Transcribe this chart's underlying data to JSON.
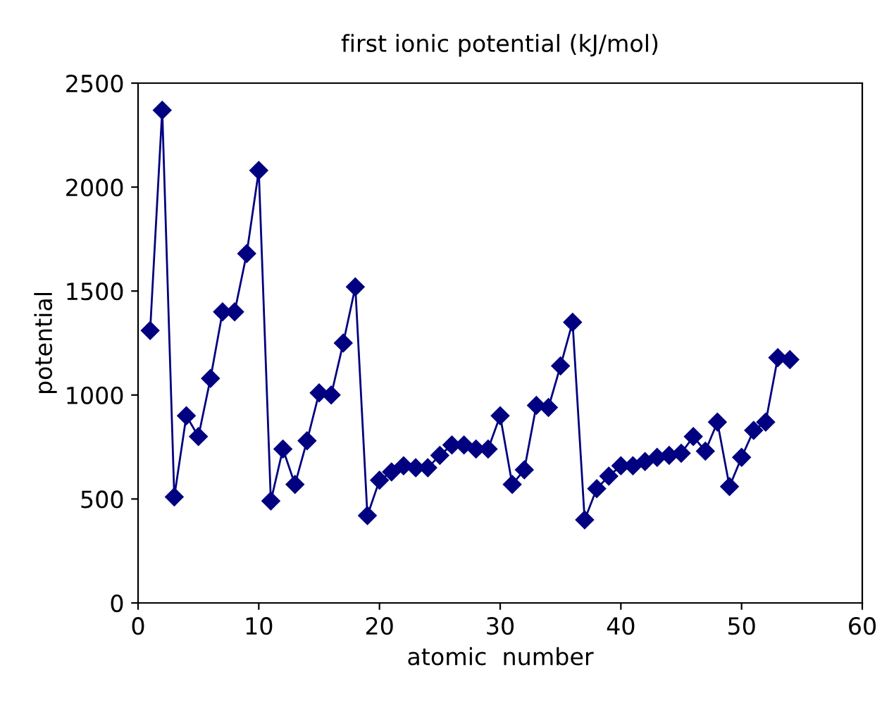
{
  "chart_data": {
    "type": "line",
    "title": "first ionic potential (kJ/mol)",
    "xlabel": "atomic  number",
    "ylabel": "potential",
    "x": [
      1,
      2,
      3,
      4,
      5,
      6,
      7,
      8,
      9,
      10,
      11,
      12,
      13,
      14,
      15,
      16,
      17,
      18,
      19,
      20,
      21,
      22,
      23,
      24,
      25,
      26,
      27,
      28,
      29,
      30,
      31,
      32,
      33,
      34,
      35,
      36,
      37,
      38,
      39,
      40,
      41,
      42,
      43,
      44,
      45,
      46,
      47,
      48,
      49,
      50,
      51,
      52,
      53,
      54
    ],
    "series": [
      {
        "color": "#000080",
        "values": [
          1310,
          2370,
          510,
          900,
          800,
          1080,
          1400,
          1400,
          1680,
          2080,
          490,
          740,
          570,
          780,
          1010,
          1000,
          1250,
          1520,
          420,
          590,
          630,
          660,
          650,
          650,
          710,
          760,
          760,
          740,
          740,
          900,
          570,
          640,
          950,
          940,
          1140,
          1350,
          400,
          550,
          610,
          660,
          660,
          680,
          700,
          710,
          720,
          800,
          730,
          870,
          560,
          700,
          830,
          870,
          1180,
          1170
        ]
      }
    ],
    "xlim": [
      0,
      60
    ],
    "xticks": [
      0,
      10,
      20,
      30,
      40,
      50,
      60
    ],
    "ylim": [
      0,
      2500
    ],
    "yticks": [
      0,
      500,
      1000,
      1500,
      2000,
      2500
    ],
    "grid": false,
    "legend": false,
    "marker": "diamond",
    "line_style": "solid"
  }
}
